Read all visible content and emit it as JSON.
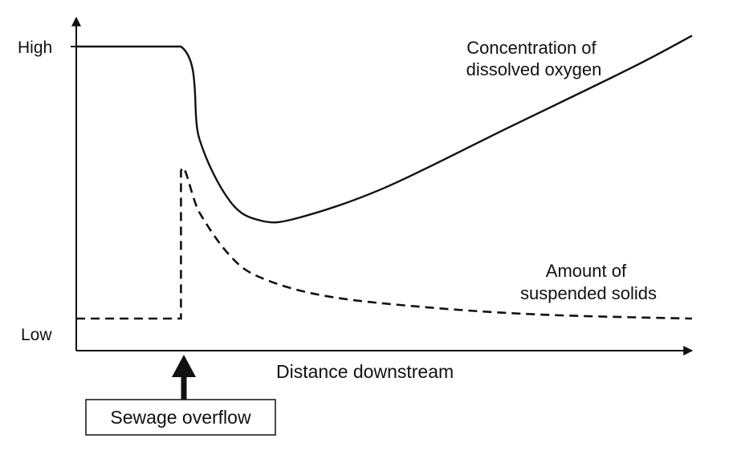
{
  "chart_data": {
    "type": "line",
    "xlabel": "Distance downstream",
    "ylabel": "",
    "yticks": [
      "High",
      "Low"
    ],
    "annotation": "Sewage overflow",
    "grid": false,
    "colors": {
      "line": "#111111",
      "background": "#ffffff"
    },
    "series": [
      {
        "name": "Concentration of dissolved oxygen",
        "name_lines": [
          "Concentration of",
          "dissolved oxygen"
        ],
        "style": "solid",
        "points": [
          [
            0,
            1.0
          ],
          [
            0.17,
            1.0
          ],
          [
            0.2,
            0.66
          ],
          [
            0.25,
            0.43
          ],
          [
            0.3,
            0.36
          ],
          [
            0.36,
            0.37
          ],
          [
            0.5,
            0.48
          ],
          [
            0.7,
            0.7
          ],
          [
            0.9,
            0.92
          ],
          [
            1.0,
            1.04
          ]
        ]
      },
      {
        "name": "Amount of suspended solids",
        "name_lines": [
          "Amount of",
          "suspended solids"
        ],
        "style": "dashed",
        "points": [
          [
            0,
            0.0
          ],
          [
            0.17,
            0.0
          ],
          [
            0.17,
            0.54
          ],
          [
            0.2,
            0.39
          ],
          [
            0.25,
            0.23
          ],
          [
            0.3,
            0.15
          ],
          [
            0.4,
            0.085
          ],
          [
            0.55,
            0.045
          ],
          [
            0.75,
            0.015
          ],
          [
            1.0,
            0.0
          ]
        ]
      }
    ]
  }
}
